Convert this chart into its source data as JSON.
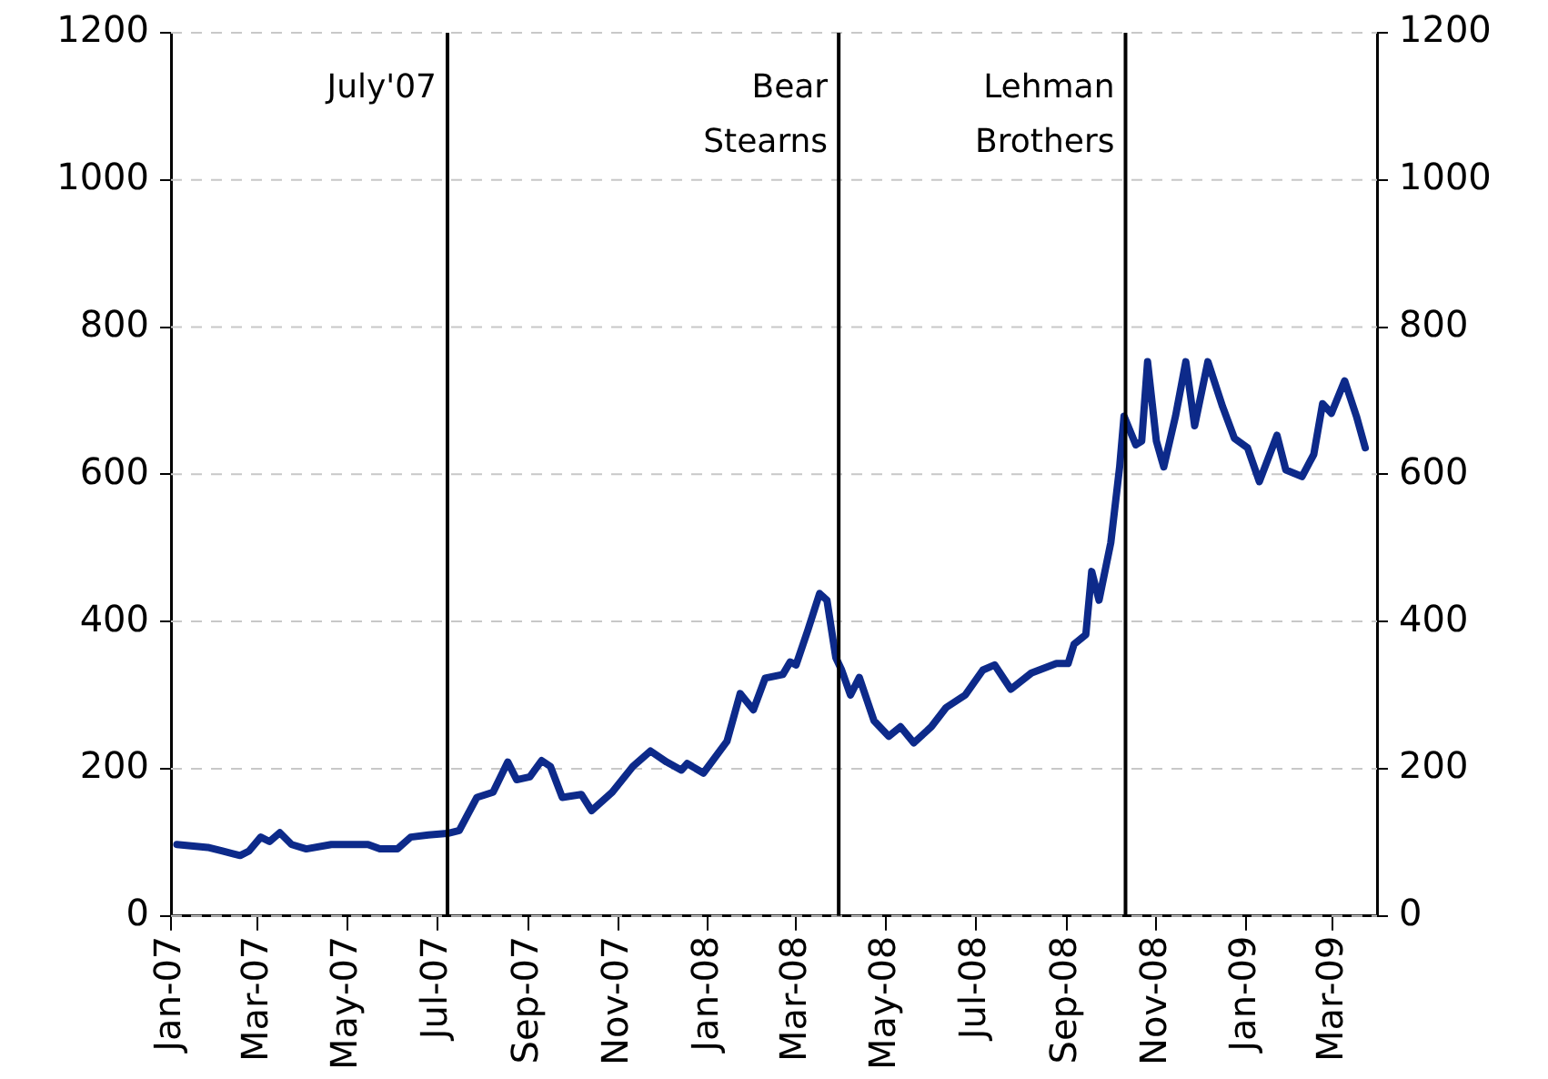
{
  "chart_data": {
    "type": "line",
    "x": [
      "2007-01-05",
      "2007-01-26",
      "2007-02-05",
      "2007-02-17",
      "2007-02-23",
      "2007-03-03",
      "2007-03-09",
      "2007-03-16",
      "2007-03-24",
      "2007-04-03",
      "2007-04-20",
      "2007-05-15",
      "2007-05-23",
      "2007-06-04",
      "2007-06-13",
      "2007-06-25",
      "2007-07-08",
      "2007-07-16",
      "2007-07-28",
      "2007-08-08",
      "2007-08-18",
      "2007-08-24",
      "2007-09-02",
      "2007-09-10",
      "2007-09-16",
      "2007-09-24",
      "2007-10-07",
      "2007-10-14",
      "2007-10-28",
      "2007-11-11",
      "2007-11-23",
      "2007-12-04",
      "2007-12-14",
      "2007-12-18",
      "2007-12-29",
      "2008-01-14",
      "2008-01-23",
      "2008-02-01",
      "2008-02-09",
      "2008-02-21",
      "2008-02-26",
      "2008-03-01",
      "2008-03-09",
      "2008-03-17",
      "2008-03-22",
      "2008-03-28",
      "2008-04-01",
      "2008-04-07",
      "2008-04-13",
      "2008-04-23",
      "2008-05-03",
      "2008-05-11",
      "2008-05-20",
      "2008-06-01",
      "2008-06-11",
      "2008-06-24",
      "2008-07-06",
      "2008-07-14",
      "2008-07-25",
      "2008-08-08",
      "2008-08-25",
      "2008-09-02",
      "2008-09-06",
      "2008-09-14",
      "2008-09-18",
      "2008-09-23",
      "2008-10-01",
      "2008-10-07",
      "2008-10-10",
      "2008-10-18",
      "2008-10-22",
      "2008-10-26",
      "2008-11-01",
      "2008-11-06",
      "2008-11-14",
      "2008-11-21",
      "2008-11-27",
      "2008-12-06",
      "2008-12-16",
      "2008-12-24",
      "2009-01-02",
      "2009-01-10",
      "2009-01-22",
      "2009-01-28",
      "2009-02-08",
      "2009-02-16",
      "2009-02-22",
      "2009-02-28",
      "2009-03-09",
      "2009-03-17",
      "2009-03-23"
    ],
    "series": [
      {
        "color": "#0d2a8a",
        "values": [
          97,
          93,
          88,
          82,
          88,
          107,
          101,
          113,
          97,
          91,
          97,
          97,
          91,
          91,
          107,
          110,
          112,
          116,
          161,
          168,
          209,
          185,
          189,
          211,
          203,
          161,
          165,
          143,
          168,
          203,
          224,
          209,
          198,
          207,
          194,
          237,
          302,
          280,
          323,
          328,
          345,
          341,
          388,
          438,
          429,
          351,
          334,
          300,
          324,
          265,
          244,
          257,
          235,
          257,
          283,
          300,
          334,
          341,
          308,
          330,
          343,
          343,
          369,
          382,
          468,
          429,
          507,
          610,
          679,
          640,
          645,
          753,
          645,
          610,
          679,
          753,
          666,
          753,
          692,
          649,
          636,
          590,
          653,
          606,
          597,
          627,
          696,
          683,
          727,
          679,
          636
        ]
      }
    ],
    "xlim": [
      "2007-01-01",
      "2009-03-31"
    ],
    "xticks": [
      {
        "value": "2007-01-01",
        "label": "Jan-07"
      },
      {
        "value": "2007-03-01",
        "label": "Mar-07"
      },
      {
        "value": "2007-05-01",
        "label": "May-07"
      },
      {
        "value": "2007-07-01",
        "label": "Jul-07"
      },
      {
        "value": "2007-09-01",
        "label": "Sep-07"
      },
      {
        "value": "2007-11-01",
        "label": "Nov-07"
      },
      {
        "value": "2008-01-01",
        "label": "Jan-08"
      },
      {
        "value": "2008-03-01",
        "label": "Mar-08"
      },
      {
        "value": "2008-05-01",
        "label": "May-08"
      },
      {
        "value": "2008-07-01",
        "label": "Jul-08"
      },
      {
        "value": "2008-09-01",
        "label": "Sep-08"
      },
      {
        "value": "2008-11-01",
        "label": "Nov-08"
      },
      {
        "value": "2009-01-01",
        "label": "Jan-09"
      },
      {
        "value": "2009-03-01",
        "label": "Mar-09"
      }
    ],
    "ylim": [
      0,
      1200
    ],
    "yticks": [
      0,
      200,
      400,
      600,
      800,
      1000,
      1200
    ],
    "y2lim": [
      0,
      1200
    ],
    "y2ticks": [
      0,
      200,
      400,
      600,
      800,
      1000,
      1200
    ],
    "ref_lines": [
      {
        "axis": "x",
        "value": "2007-07-08",
        "label": "July'07",
        "color": "#000000"
      },
      {
        "axis": "x",
        "value": "2008-03-30",
        "label": "Bear Stearns",
        "color": "#000000"
      },
      {
        "axis": "x",
        "value": "2008-10-11",
        "label": "Lehman Brothers",
        "color": "#000000"
      }
    ],
    "grid": "y",
    "legend": false,
    "marker": "none",
    "line_style": "solid"
  }
}
